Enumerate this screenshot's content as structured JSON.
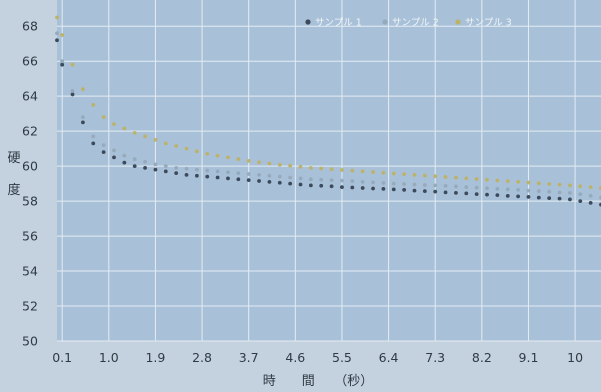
{
  "chart_data": {
    "type": "scatter",
    "title": "",
    "xlabel": "時　　間　　（秒）",
    "ylabel_chars": [
      "硬",
      "度"
    ],
    "x_ticks": [
      "0.1",
      "1.0",
      "1.9",
      "2.8",
      "3.7",
      "4.6",
      "5.5",
      "6.4",
      "7.3",
      "8.2",
      "9.1",
      "10"
    ],
    "y_ticks": [
      "50",
      "52",
      "54",
      "56",
      "58",
      "60",
      "62",
      "64",
      "66",
      "68"
    ],
    "xlim": [
      0,
      10.5
    ],
    "ylim": [
      50,
      69.5
    ],
    "grid": true,
    "legend_position": "top-right",
    "series": [
      {
        "name": "サンプル 1",
        "color": "#3c4a5b",
        "x": [
          0.0,
          0.1,
          0.3,
          0.5,
          0.7,
          0.9,
          1.1,
          1.3,
          1.5,
          1.7,
          1.9,
          2.1,
          2.3,
          2.5,
          2.7,
          2.9,
          3.1,
          3.3,
          3.5,
          3.7,
          3.9,
          4.1,
          4.3,
          4.5,
          4.7,
          4.9,
          5.1,
          5.3,
          5.5,
          5.7,
          5.9,
          6.1,
          6.3,
          6.5,
          6.7,
          6.9,
          7.1,
          7.3,
          7.5,
          7.7,
          7.9,
          8.1,
          8.3,
          8.5,
          8.7,
          8.9,
          9.1,
          9.3,
          9.5,
          9.7,
          9.9,
          10.1,
          10.3,
          10.5
        ],
        "y": [
          67.2,
          65.8,
          64.1,
          62.5,
          61.3,
          60.8,
          60.5,
          60.2,
          60.0,
          59.9,
          59.8,
          59.7,
          59.6,
          59.5,
          59.45,
          59.4,
          59.35,
          59.3,
          59.25,
          59.2,
          59.15,
          59.1,
          59.05,
          59.0,
          58.95,
          58.9,
          58.88,
          58.85,
          58.8,
          58.78,
          58.75,
          58.72,
          58.7,
          58.67,
          58.64,
          58.6,
          58.57,
          58.54,
          58.5,
          58.47,
          58.44,
          58.4,
          58.37,
          58.34,
          58.3,
          58.27,
          58.24,
          58.2,
          58.17,
          58.14,
          58.1,
          58.0,
          57.9,
          57.8
        ]
      },
      {
        "name": "サンプル 2",
        "color": "#97aabb",
        "x": [
          0.0,
          0.1,
          0.3,
          0.5,
          0.7,
          0.9,
          1.1,
          1.3,
          1.5,
          1.7,
          1.9,
          2.1,
          2.3,
          2.5,
          2.7,
          2.9,
          3.1,
          3.3,
          3.5,
          3.7,
          3.9,
          4.1,
          4.3,
          4.5,
          4.7,
          4.9,
          5.1,
          5.3,
          5.5,
          5.7,
          5.9,
          6.1,
          6.3,
          6.5,
          6.7,
          6.9,
          7.1,
          7.3,
          7.5,
          7.7,
          7.9,
          8.1,
          8.3,
          8.5,
          8.7,
          8.9,
          9.1,
          9.3,
          9.5,
          9.7,
          9.9,
          10.1,
          10.3,
          10.5
        ],
        "y": [
          67.6,
          66.0,
          64.3,
          62.8,
          61.7,
          61.2,
          60.9,
          60.6,
          60.4,
          60.25,
          60.1,
          60.0,
          59.9,
          59.85,
          59.8,
          59.75,
          59.7,
          59.65,
          59.6,
          59.55,
          59.5,
          59.45,
          59.4,
          59.35,
          59.3,
          59.25,
          59.22,
          59.2,
          59.17,
          59.14,
          59.1,
          59.07,
          59.04,
          59.0,
          58.98,
          58.95,
          58.92,
          58.9,
          58.87,
          58.84,
          58.8,
          58.77,
          58.74,
          58.7,
          58.67,
          58.64,
          58.6,
          58.57,
          58.54,
          58.5,
          58.47,
          58.4,
          58.3,
          58.2
        ]
      },
      {
        "name": "サンプル 3",
        "color": "#bdb26a",
        "x": [
          0.0,
          0.1,
          0.3,
          0.5,
          0.7,
          0.9,
          1.1,
          1.3,
          1.5,
          1.7,
          1.9,
          2.1,
          2.3,
          2.5,
          2.7,
          2.9,
          3.1,
          3.3,
          3.5,
          3.7,
          3.9,
          4.1,
          4.3,
          4.5,
          4.7,
          4.9,
          5.1,
          5.3,
          5.5,
          5.7,
          5.9,
          6.1,
          6.3,
          6.5,
          6.7,
          6.9,
          7.1,
          7.3,
          7.5,
          7.7,
          7.9,
          8.1,
          8.3,
          8.5,
          8.7,
          8.9,
          9.1,
          9.3,
          9.5,
          9.7,
          9.9,
          10.1,
          10.3,
          10.5
        ],
        "y": [
          68.5,
          67.5,
          65.8,
          64.4,
          63.5,
          62.8,
          62.4,
          62.15,
          61.9,
          61.7,
          61.5,
          61.3,
          61.15,
          61.0,
          60.85,
          60.7,
          60.6,
          60.5,
          60.4,
          60.3,
          60.22,
          60.15,
          60.08,
          60.02,
          59.96,
          59.9,
          59.86,
          59.82,
          59.78,
          59.74,
          59.7,
          59.66,
          59.62,
          59.58,
          59.54,
          59.5,
          59.46,
          59.42,
          59.38,
          59.34,
          59.3,
          59.26,
          59.22,
          59.18,
          59.14,
          59.1,
          59.06,
          59.02,
          58.98,
          58.94,
          58.9,
          58.85,
          58.8,
          58.75
        ]
      }
    ]
  }
}
